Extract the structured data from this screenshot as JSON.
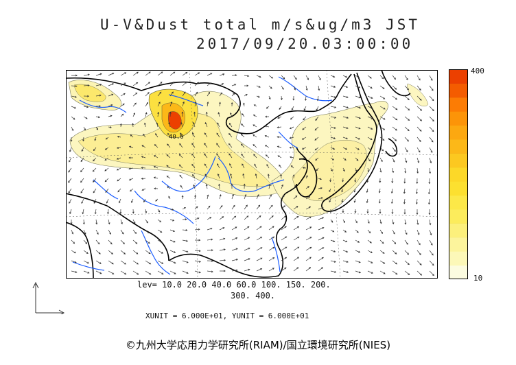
{
  "title": {
    "line1": "U-V&Dust total m/s&ug/m3 JST",
    "line2": "2017/09/20.03:00:00"
  },
  "colorbar": {
    "max_label": "400",
    "min_label": "10",
    "colors": [
      "#fcfce0",
      "#fcf8b8",
      "#fcf49c",
      "#fcf07c",
      "#fcec5c",
      "#fce848",
      "#fce030",
      "#fcd828",
      "#fcc820",
      "#fcb818",
      "#fca810",
      "#fc9408",
      "#fc7c04",
      "#f45c00",
      "#ec4000"
    ]
  },
  "contour_label": "40.0",
  "legend": {
    "levels_line1": "lev= 10.0 20.0 40.0 60.0 100. 150. 200.",
    "levels_line2": "300. 400."
  },
  "units": "XUNIT = 6.000E+01, YUNIT = 6.000E+01",
  "credit": "©九州大学応用力学研究所(RIAM)/国立環境研究所(NIES)",
  "icons": {
    "reference_vector": "reference-vector-arrows-icon"
  },
  "colors": {
    "dust_light": "#fcf6c0",
    "dust_mid": "#fcec6c",
    "dust_high": "#fcb818",
    "dust_peak": "#ec4000",
    "rivers": "#1a5cff",
    "coast": "#000000",
    "arrows": "#333333"
  }
}
